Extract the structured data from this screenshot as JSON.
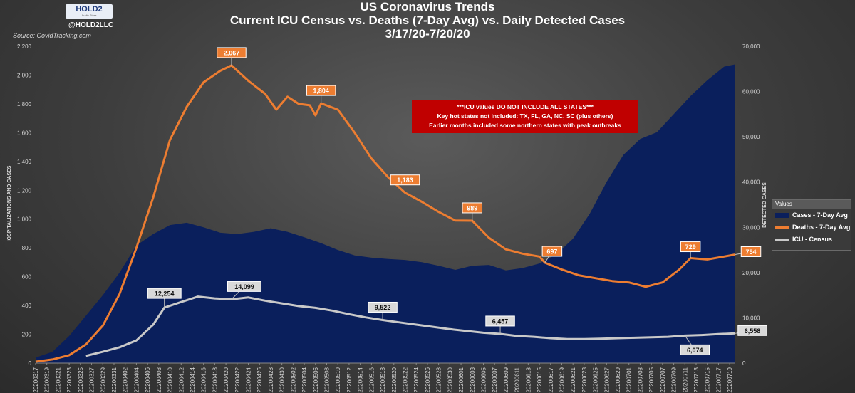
{
  "titles": {
    "line1": "US Coronavirus Trends",
    "line2": "Current ICU Census vs. Deaths (7-Day Avg) vs. Daily Detected Cases",
    "line3": "3/17/20-7/20/20"
  },
  "branding": {
    "logo_text": "HOLD2",
    "logo_subtext": "Audio Store",
    "handle": "@HOLD2LLC"
  },
  "source": "Source: CovidTracking.com",
  "note": {
    "line1": "***ICU values DO NOT INCLUDE ALL STATES***",
    "line2": "Key hot states not included: TX, FL, GA, NC, SC (plus others)",
    "line3": "Earlier months included some northern states with peak outbreaks"
  },
  "legend": {
    "header": "Values",
    "items": [
      {
        "label": "Cases - 7-Day Avg",
        "color": "#0a1f5c",
        "kind": "area"
      },
      {
        "label": "Deaths - 7-Day Avg",
        "color": "#ed7d31",
        "kind": "line"
      },
      {
        "label": "ICU - Census",
        "color": "#c9c9c9",
        "kind": "line"
      }
    ]
  },
  "colors": {
    "cases": "#0a1f5c",
    "deaths": "#ed7d31",
    "icu": "#c9c9c9",
    "axis_text": "#d9d9d9",
    "note_bg": "#c00000"
  },
  "chart_data": {
    "type": "area",
    "title": "Current ICU Census vs. Deaths (7-Day Avg) vs. Daily Detected Cases",
    "y_left": {
      "label": "HOSPITALIZATIONS AND CASES",
      "range": [
        0,
        2200
      ],
      "ticks": [
        "0",
        "200",
        "400",
        "600",
        "800",
        "1,000",
        "1,200",
        "1,400",
        "1,600",
        "1,800",
        "2,000",
        "2,200"
      ]
    },
    "y_right": {
      "label": "DETECTED CASES",
      "range": [
        0,
        70000
      ],
      "ticks": [
        "0",
        "10,000",
        "20,000",
        "30,000",
        "40,000",
        "50,000",
        "60,000",
        "70,000"
      ]
    },
    "x_start": "2020-03-17",
    "x_end": "2020-07-20",
    "x_ticks": [
      "20200317",
      "20200319",
      "20200321",
      "20200323",
      "20200325",
      "20200327",
      "20200329",
      "20200331",
      "20200402",
      "20200404",
      "20200406",
      "20200408",
      "20200410",
      "20200412",
      "20200414",
      "20200416",
      "20200418",
      "20200420",
      "20200422",
      "20200424",
      "20200426",
      "20200428",
      "20200430",
      "20200502",
      "20200504",
      "20200506",
      "20200508",
      "20200510",
      "20200512",
      "20200514",
      "20200516",
      "20200518",
      "20200520",
      "20200522",
      "20200524",
      "20200526",
      "20200528",
      "20200530",
      "20200601",
      "20200603",
      "20200605",
      "20200607",
      "20200609",
      "20200611",
      "20200613",
      "20200615",
      "20200617",
      "20200619",
      "20200621",
      "20200623",
      "20200625",
      "20200627",
      "20200629",
      "20200701",
      "20200703",
      "20200705",
      "20200707",
      "20200709",
      "20200711",
      "20200713",
      "20200715",
      "20200717",
      "20200719"
    ],
    "series": [
      {
        "name": "Cases - 7-Day Avg",
        "axis": "right",
        "points": [
          [
            "2020-03-17",
            1200
          ],
          [
            "2020-03-20",
            2500
          ],
          [
            "2020-03-23",
            6000
          ],
          [
            "2020-03-26",
            10500
          ],
          [
            "2020-03-29",
            15000
          ],
          [
            "2020-04-01",
            20000
          ],
          [
            "2020-04-04",
            26000
          ],
          [
            "2020-04-07",
            28500
          ],
          [
            "2020-04-10",
            30500
          ],
          [
            "2020-04-13",
            31000
          ],
          [
            "2020-04-16",
            30000
          ],
          [
            "2020-04-19",
            28800
          ],
          [
            "2020-04-22",
            28500
          ],
          [
            "2020-04-25",
            29000
          ],
          [
            "2020-04-28",
            29800
          ],
          [
            "2020-05-01",
            29000
          ],
          [
            "2020-05-04",
            27800
          ],
          [
            "2020-05-07",
            26500
          ],
          [
            "2020-05-10",
            25000
          ],
          [
            "2020-05-13",
            23800
          ],
          [
            "2020-05-16",
            23300
          ],
          [
            "2020-05-19",
            23000
          ],
          [
            "2020-05-22",
            22800
          ],
          [
            "2020-05-25",
            22300
          ],
          [
            "2020-05-28",
            21500
          ],
          [
            "2020-05-31",
            20600
          ],
          [
            "2020-06-03",
            21500
          ],
          [
            "2020-06-06",
            21700
          ],
          [
            "2020-06-09",
            20500
          ],
          [
            "2020-06-12",
            21000
          ],
          [
            "2020-06-15",
            22000
          ],
          [
            "2020-06-18",
            24000
          ],
          [
            "2020-06-21",
            27500
          ],
          [
            "2020-06-24",
            33000
          ],
          [
            "2020-06-27",
            40000
          ],
          [
            "2020-06-30",
            46000
          ],
          [
            "2020-07-03",
            49500
          ],
          [
            "2020-07-06",
            51000
          ],
          [
            "2020-07-09",
            55000
          ],
          [
            "2020-07-12",
            59000
          ],
          [
            "2020-07-15",
            62500
          ],
          [
            "2020-07-18",
            65500
          ],
          [
            "2020-07-20",
            66000
          ]
        ]
      },
      {
        "name": "Deaths - 7-Day Avg",
        "axis": "left",
        "points": [
          [
            "2020-03-17",
            10
          ],
          [
            "2020-03-20",
            25
          ],
          [
            "2020-03-23",
            55
          ],
          [
            "2020-03-26",
            130
          ],
          [
            "2020-03-29",
            260
          ],
          [
            "2020-04-01",
            480
          ],
          [
            "2020-04-04",
            800
          ],
          [
            "2020-04-07",
            1150
          ],
          [
            "2020-04-10",
            1550
          ],
          [
            "2020-04-13",
            1780
          ],
          [
            "2020-04-16",
            1950
          ],
          [
            "2020-04-19",
            2030
          ],
          [
            "2020-04-21",
            2067
          ],
          [
            "2020-04-24",
            1960
          ],
          [
            "2020-04-27",
            1870
          ],
          [
            "2020-04-29",
            1760
          ],
          [
            "2020-05-01",
            1850
          ],
          [
            "2020-05-03",
            1800
          ],
          [
            "2020-05-05",
            1790
          ],
          [
            "2020-05-06",
            1720
          ],
          [
            "2020-05-07",
            1804
          ],
          [
            "2020-05-10",
            1760
          ],
          [
            "2020-05-13",
            1600
          ],
          [
            "2020-05-16",
            1420
          ],
          [
            "2020-05-19",
            1290
          ],
          [
            "2020-05-22",
            1183
          ],
          [
            "2020-05-25",
            1120
          ],
          [
            "2020-05-28",
            1050
          ],
          [
            "2020-05-31",
            990
          ],
          [
            "2020-06-03",
            989
          ],
          [
            "2020-06-06",
            870
          ],
          [
            "2020-06-09",
            790
          ],
          [
            "2020-06-12",
            760
          ],
          [
            "2020-06-15",
            740
          ],
          [
            "2020-06-16",
            697
          ],
          [
            "2020-06-19",
            650
          ],
          [
            "2020-06-22",
            610
          ],
          [
            "2020-06-25",
            590
          ],
          [
            "2020-06-28",
            570
          ],
          [
            "2020-07-01",
            560
          ],
          [
            "2020-07-04",
            530
          ],
          [
            "2020-07-07",
            560
          ],
          [
            "2020-07-10",
            650
          ],
          [
            "2020-07-12",
            729
          ],
          [
            "2020-07-15",
            720
          ],
          [
            "2020-07-18",
            740
          ],
          [
            "2020-07-20",
            754
          ]
        ]
      },
      {
        "name": "ICU - Census",
        "axis": "right",
        "points": [
          [
            "2020-03-26",
            1600
          ],
          [
            "2020-03-29",
            2500
          ],
          [
            "2020-04-01",
            3500
          ],
          [
            "2020-04-04",
            5000
          ],
          [
            "2020-04-07",
            8500
          ],
          [
            "2020-04-09",
            12254
          ],
          [
            "2020-04-12",
            13500
          ],
          [
            "2020-04-15",
            14700
          ],
          [
            "2020-04-18",
            14300
          ],
          [
            "2020-04-21",
            14099
          ],
          [
            "2020-04-24",
            14500
          ],
          [
            "2020-04-27",
            13800
          ],
          [
            "2020-04-30",
            13200
          ],
          [
            "2020-05-03",
            12600
          ],
          [
            "2020-05-06",
            12200
          ],
          [
            "2020-05-09",
            11600
          ],
          [
            "2020-05-12",
            10800
          ],
          [
            "2020-05-15",
            10100
          ],
          [
            "2020-05-18",
            9522
          ],
          [
            "2020-05-21",
            9000
          ],
          [
            "2020-05-24",
            8500
          ],
          [
            "2020-05-27",
            8000
          ],
          [
            "2020-05-30",
            7500
          ],
          [
            "2020-06-02",
            7100
          ],
          [
            "2020-06-05",
            6700
          ],
          [
            "2020-06-08",
            6457
          ],
          [
            "2020-06-11",
            6000
          ],
          [
            "2020-06-14",
            5800
          ],
          [
            "2020-06-17",
            5500
          ],
          [
            "2020-06-20",
            5300
          ],
          [
            "2020-06-23",
            5300
          ],
          [
            "2020-06-26",
            5400
          ],
          [
            "2020-06-29",
            5500
          ],
          [
            "2020-07-02",
            5600
          ],
          [
            "2020-07-05",
            5700
          ],
          [
            "2020-07-08",
            5800
          ],
          [
            "2020-07-11",
            6074
          ],
          [
            "2020-07-14",
            6200
          ],
          [
            "2020-07-17",
            6400
          ],
          [
            "2020-07-20",
            6558
          ]
        ]
      }
    ],
    "data_labels": [
      {
        "series": "Deaths - 7-Day Avg",
        "date": "2020-04-21",
        "value": 2067,
        "text": "2,067"
      },
      {
        "series": "Deaths - 7-Day Avg",
        "date": "2020-05-07",
        "value": 1804,
        "text": "1,804"
      },
      {
        "series": "Deaths - 7-Day Avg",
        "date": "2020-05-22",
        "value": 1183,
        "text": "1,183"
      },
      {
        "series": "Deaths - 7-Day Avg",
        "date": "2020-06-03",
        "value": 989,
        "text": "989"
      },
      {
        "series": "Deaths - 7-Day Avg",
        "date": "2020-06-16",
        "value": 697,
        "text": "697"
      },
      {
        "series": "Deaths - 7-Day Avg",
        "date": "2020-07-12",
        "value": 729,
        "text": "729"
      },
      {
        "series": "Deaths - 7-Day Avg",
        "date": "2020-07-20",
        "value": 754,
        "text": "754"
      },
      {
        "series": "ICU - Census",
        "date": "2020-04-09",
        "value": 12254,
        "text": "12,254"
      },
      {
        "series": "ICU - Census",
        "date": "2020-04-21",
        "value": 14099,
        "text": "14,099"
      },
      {
        "series": "ICU - Census",
        "date": "2020-05-18",
        "value": 9522,
        "text": "9,522"
      },
      {
        "series": "ICU - Census",
        "date": "2020-06-08",
        "value": 6457,
        "text": "6,457"
      },
      {
        "series": "ICU - Census",
        "date": "2020-07-11",
        "value": 6074,
        "text": "6,074"
      },
      {
        "series": "ICU - Census",
        "date": "2020-07-20",
        "value": 6558,
        "text": "6,558"
      }
    ],
    "grid": false,
    "legend_position": "right"
  }
}
